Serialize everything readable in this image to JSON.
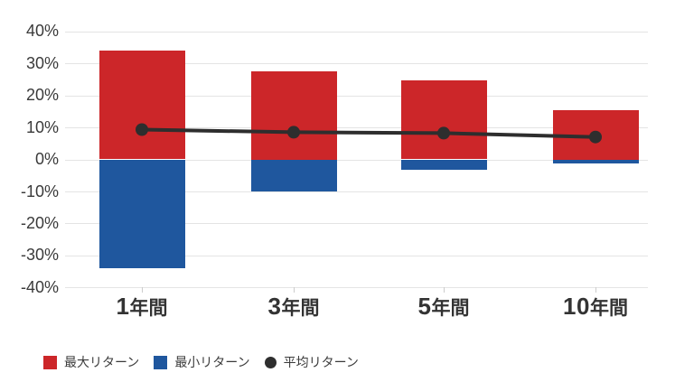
{
  "chart_data": {
    "type": "bar",
    "subtype": "bar-range-with-line",
    "title": "",
    "categories": [
      "1年間",
      "3年間",
      "5年間",
      "10年間"
    ],
    "series": [
      {
        "name": "最大リターン",
        "type": "bar",
        "color": "#cc2629",
        "values": [
          33.9,
          27.5,
          24.6,
          15.5
        ]
      },
      {
        "name": "最小リターン",
        "type": "bar",
        "color": "#1f579e",
        "values": [
          -34.0,
          -10.0,
          -3.2,
          -1.2
        ]
      },
      {
        "name": "平均リターン",
        "type": "line",
        "color": "#2e2e2e",
        "values": [
          9.3,
          8.5,
          8.2,
          7.0
        ]
      }
    ],
    "xlabel": "",
    "ylabel": "",
    "ylim": [
      -40,
      40
    ],
    "ytick_step": 10,
    "ytick_labels": [
      "40%",
      "30%",
      "20%",
      "10%",
      "0%",
      "-10%",
      "-20%",
      "-30%",
      "-40%"
    ],
    "ytick_suffix": "%",
    "grid": "horizontal",
    "legend_position": "bottom-left"
  },
  "colors": {
    "max_return": "#cc2629",
    "min_return": "#1f579e",
    "average_return": "#2e2e2e",
    "grid": "#e4e4e4",
    "axis_text": "#3a3a3a",
    "background": "#ffffff"
  }
}
